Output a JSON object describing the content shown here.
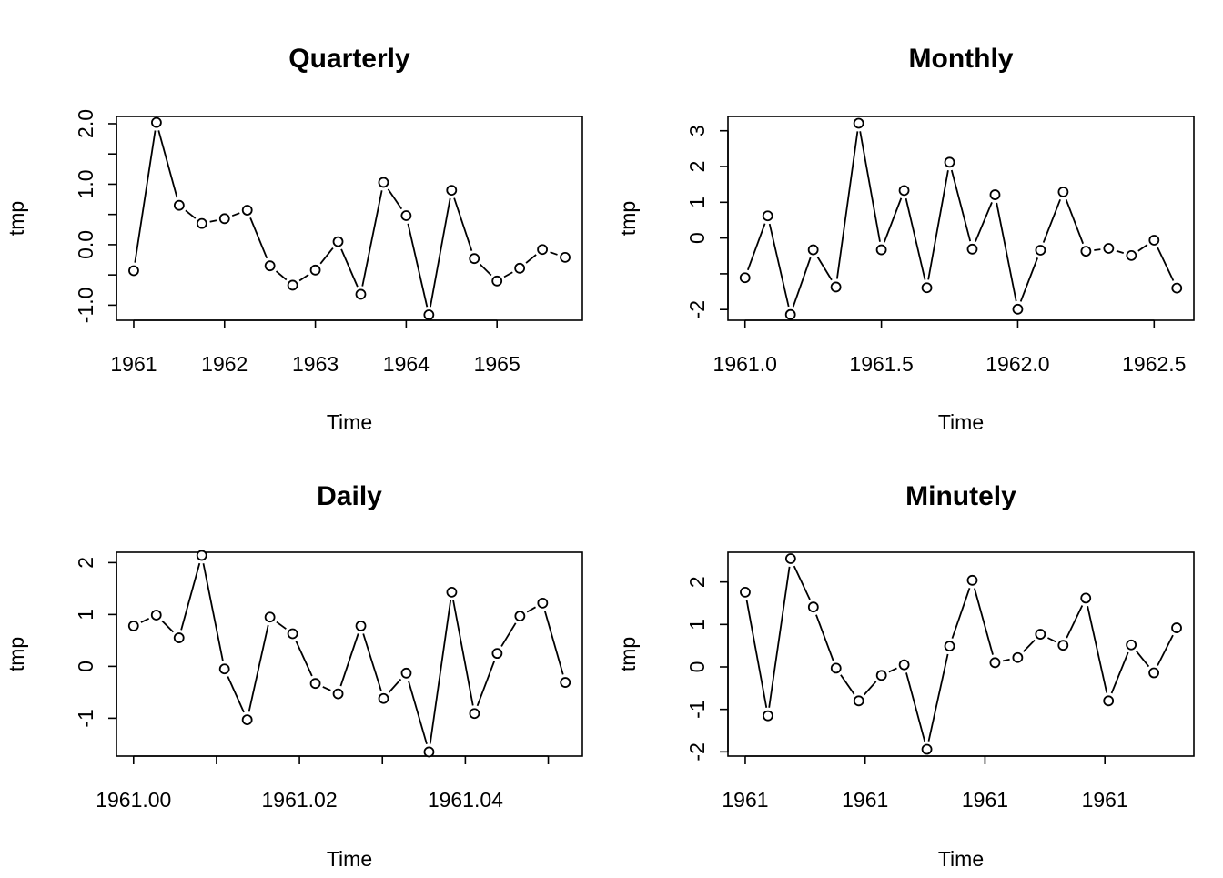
{
  "chart_data": [
    {
      "type": "line",
      "title": "Quarterly",
      "xlabel": "Time",
      "ylabel": "tmp",
      "xlim": [
        1960.81,
        1965.94
      ],
      "ylim": [
        -1.25,
        2.12
      ],
      "x_ticks": [
        1961,
        1962,
        1963,
        1964,
        1965
      ],
      "x_tick_labels": [
        "1961",
        "1962",
        "1963",
        "1964",
        "1965"
      ],
      "y_ticks": [
        -1.0,
        -0.5,
        0.0,
        0.5,
        1.0,
        1.5,
        2.0
      ],
      "y_tick_labels": [
        "-1.0",
        "",
        "0.0",
        "",
        "1.0",
        "",
        "2.0"
      ],
      "series": [
        {
          "x": [
            1961,
            1961.25,
            1961.5,
            1961.75,
            1962,
            1962.25,
            1962.5,
            1962.75,
            1963,
            1963.25,
            1963.5,
            1963.75,
            1964,
            1964.25,
            1964.5,
            1964.75,
            1965,
            1965.25,
            1965.5,
            1965.75
          ],
          "values": [
            -0.43,
            2.02,
            0.65,
            0.35,
            0.43,
            0.57,
            -0.35,
            -0.67,
            -0.42,
            0.05,
            -0.82,
            1.03,
            0.48,
            -1.16,
            0.9,
            -0.23,
            -0.6,
            -0.39,
            -0.08,
            -0.21
          ]
        }
      ]
    },
    {
      "type": "line",
      "title": "Monthly",
      "xlabel": "Time",
      "ylabel": "tmp",
      "xlim": [
        1960.9375,
        1962.6458
      ],
      "ylim": [
        -2.3,
        3.4
      ],
      "x_ticks": [
        1961.0,
        1961.5,
        1962.0,
        1962.5
      ],
      "x_tick_labels": [
        "1961.0",
        "1961.5",
        "1962.0",
        "1962.5"
      ],
      "y_ticks": [
        -2,
        -1,
        0,
        1,
        2,
        3
      ],
      "y_tick_labels": [
        "-2",
        "",
        "0",
        "1",
        "2",
        "3"
      ],
      "series": [
        {
          "x": [
            1961.0,
            1961.0833,
            1961.1667,
            1961.25,
            1961.3333,
            1961.4167,
            1961.5,
            1961.5833,
            1961.6667,
            1961.75,
            1961.8333,
            1961.9167,
            1962.0,
            1962.0833,
            1962.1667,
            1962.25,
            1962.3333,
            1962.4167,
            1962.5,
            1962.5833
          ],
          "values": [
            -1.11,
            0.62,
            -2.14,
            -0.33,
            -1.37,
            3.21,
            -0.33,
            1.33,
            -1.39,
            2.12,
            -0.31,
            1.21,
            -1.99,
            -0.34,
            1.29,
            -0.37,
            -0.29,
            -0.49,
            -0.06,
            -1.4
          ]
        }
      ]
    },
    {
      "type": "line",
      "title": "Daily",
      "xlabel": "Time",
      "ylabel": "tmp",
      "xlim": [
        1960.99794,
        1961.05411
      ],
      "ylim": [
        -1.73,
        2.2
      ],
      "x_ticks": [
        1961.0,
        1961.01,
        1961.02,
        1961.03,
        1961.04,
        1961.05
      ],
      "x_tick_labels": [
        "1961.00",
        "",
        "1961.02",
        "",
        "1961.04",
        ""
      ],
      "y_ticks": [
        -1,
        0,
        1,
        2
      ],
      "y_tick_labels": [
        "-1",
        "0",
        "1",
        "2"
      ],
      "series": [
        {
          "x": [
            1961.0,
            1961.00274,
            1961.00548,
            1961.00822,
            1961.01096,
            1961.0137,
            1961.01644,
            1961.01918,
            1961.02192,
            1961.02466,
            1961.0274,
            1961.03014,
            1961.03288,
            1961.03562,
            1961.03836,
            1961.0411,
            1961.04384,
            1961.04658,
            1961.04932,
            1961.05205
          ],
          "values": [
            0.78,
            0.99,
            0.55,
            2.14,
            -0.05,
            -1.03,
            0.95,
            0.63,
            -0.33,
            -0.53,
            0.78,
            -0.62,
            -0.13,
            -1.65,
            1.43,
            -0.91,
            0.25,
            0.97,
            1.22,
            -0.31
          ]
        }
      ]
    },
    {
      "type": "line",
      "title": "Minutely",
      "xlabel": "Time",
      "ylabel": "tmp",
      "xlim": [
        -0.76,
        19.76
      ],
      "ylim": [
        -2.1,
        2.7
      ],
      "x_ticks": [
        0,
        5.28,
        10.56,
        15.84
      ],
      "x_tick_labels": [
        "1961",
        "1961",
        "1961",
        "1961"
      ],
      "y_ticks": [
        -2,
        -1,
        0,
        1,
        2
      ],
      "y_tick_labels": [
        "-2",
        "-1",
        "0",
        "1",
        "2"
      ],
      "series": [
        {
          "x": [
            0,
            1,
            2,
            3,
            4,
            5,
            6,
            7,
            8,
            9,
            10,
            11,
            12,
            13,
            14,
            15,
            16,
            17,
            18,
            19
          ],
          "values": [
            1.76,
            -1.15,
            2.55,
            1.41,
            -0.03,
            -0.8,
            -0.2,
            0.05,
            -1.94,
            0.49,
            2.04,
            0.1,
            0.22,
            0.77,
            0.51,
            1.62,
            -0.8,
            0.52,
            -0.14,
            0.92
          ]
        }
      ]
    }
  ]
}
